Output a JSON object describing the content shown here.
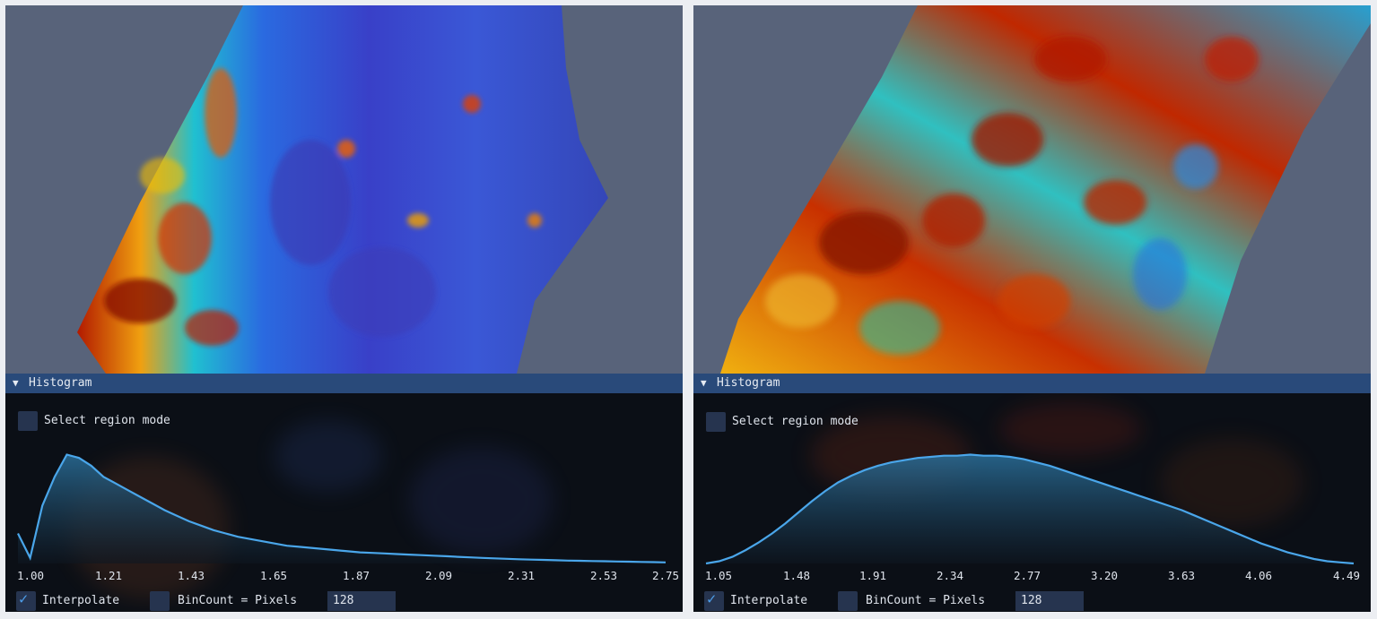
{
  "panels": [
    {
      "histogram": {
        "title": "Histogram",
        "select_region_label": "Select region mode",
        "select_region_checked": false,
        "ticks": [
          "1.00",
          "1.21",
          "1.43",
          "1.65",
          "1.87",
          "2.09",
          "2.31",
          "2.53",
          "2.75"
        ],
        "curve": [
          0.27,
          0.05,
          0.52,
          0.78,
          0.98,
          0.95,
          0.88,
          0.78,
          0.72,
          0.66,
          0.6,
          0.54,
          0.48,
          0.43,
          0.38,
          0.34,
          0.3,
          0.27,
          0.24,
          0.22,
          0.2,
          0.18,
          0.16,
          0.15,
          0.14,
          0.13,
          0.12,
          0.11,
          0.1,
          0.095,
          0.09,
          0.085,
          0.08,
          0.075,
          0.07,
          0.065,
          0.06,
          0.055,
          0.05,
          0.046,
          0.042,
          0.038,
          0.035,
          0.032,
          0.029,
          0.026,
          0.024,
          0.022,
          0.02,
          0.018,
          0.016,
          0.014,
          0.012,
          0.01
        ],
        "interpolate_label": "Interpolate",
        "interpolate_checked": true,
        "bincount_label": "BinCount = Pixels",
        "bincount_checked": false,
        "bins_value": "128"
      }
    },
    {
      "histogram": {
        "title": "Histogram",
        "select_region_label": "Select region mode",
        "select_region_checked": false,
        "ticks": [
          "1.05",
          "1.48",
          "1.91",
          "2.34",
          "2.77",
          "3.20",
          "3.63",
          "4.06",
          "4.49"
        ],
        "curve": [
          0.0,
          0.02,
          0.06,
          0.12,
          0.19,
          0.27,
          0.36,
          0.46,
          0.56,
          0.65,
          0.73,
          0.79,
          0.84,
          0.88,
          0.91,
          0.93,
          0.95,
          0.96,
          0.97,
          0.97,
          0.98,
          0.97,
          0.97,
          0.96,
          0.94,
          0.91,
          0.88,
          0.84,
          0.8,
          0.76,
          0.72,
          0.68,
          0.64,
          0.6,
          0.56,
          0.52,
          0.48,
          0.43,
          0.38,
          0.33,
          0.28,
          0.23,
          0.18,
          0.14,
          0.1,
          0.07,
          0.04,
          0.02,
          0.01,
          0.0
        ],
        "interpolate_label": "Interpolate",
        "interpolate_checked": true,
        "bincount_label": "BinCount = Pixels",
        "bincount_checked": false,
        "bins_value": "128"
      }
    }
  ]
}
